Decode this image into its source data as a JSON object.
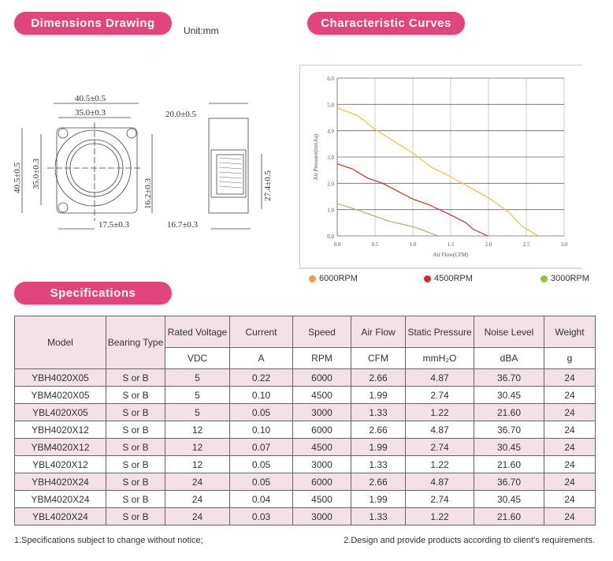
{
  "dimensions": {
    "title": "Dimensions Drawing",
    "unit": "Unit:mm",
    "labels": {
      "front_width_outer": "40.5±0.5",
      "front_width_inner": "35.0±0.3",
      "front_height_outer": "40.5±0.5",
      "front_height_inner": "35.0±0.3",
      "front_right_height": "16.2±0.3",
      "front_bottom": "17.5±0.3",
      "side_width": "20.0±0.5",
      "side_height": "27.4±0.5",
      "side_bottom": "16.7±0.3"
    }
  },
  "curves": {
    "title": "Characteristic Curves"
  },
  "chart_data": {
    "type": "line",
    "title": "Characteristic Curves",
    "xlabel": "Air Flow(CFM)",
    "ylabel": "Air Pressure(mmAq)",
    "xlim": [
      0,
      3
    ],
    "ylim": [
      0,
      6
    ],
    "xticks": [
      "0.0",
      "0.5",
      "1.0",
      "1.5",
      "2.0",
      "2.5",
      "3.0"
    ],
    "yticks": [
      "0.0",
      "1.0",
      "2.0",
      "3.0",
      "4.0",
      "5.0",
      "6.0"
    ],
    "grid": true,
    "legend_position": "bottom",
    "series": [
      {
        "name": "6000RPM",
        "color": "#f0c040",
        "legend_color": "#f39a4c",
        "points": [
          [
            0,
            4.87
          ],
          [
            0.25,
            4.6
          ],
          [
            0.35,
            4.4
          ],
          [
            0.5,
            4.05
          ],
          [
            0.75,
            3.6
          ],
          [
            1.0,
            3.15
          ],
          [
            1.25,
            2.6
          ],
          [
            1.5,
            2.25
          ],
          [
            1.75,
            1.85
          ],
          [
            2.0,
            1.45
          ],
          [
            2.25,
            0.95
          ],
          [
            2.45,
            0.35
          ],
          [
            2.66,
            0
          ]
        ]
      },
      {
        "name": "4500RPM",
        "color": "#d42a2a",
        "legend_color": "#d42a2a",
        "points": [
          [
            0,
            2.74
          ],
          [
            0.2,
            2.55
          ],
          [
            0.4,
            2.2
          ],
          [
            0.6,
            2.0
          ],
          [
            0.8,
            1.7
          ],
          [
            1.0,
            1.4
          ],
          [
            1.2,
            1.2
          ],
          [
            1.5,
            0.8
          ],
          [
            1.7,
            0.5
          ],
          [
            1.8,
            0.25
          ],
          [
            1.99,
            0
          ]
        ]
      },
      {
        "name": "3000RPM",
        "color": "#9cb86a",
        "legend_color": "#8cc43c",
        "points": [
          [
            0,
            1.22
          ],
          [
            0.15,
            1.1
          ],
          [
            0.3,
            0.95
          ],
          [
            0.5,
            0.75
          ],
          [
            0.7,
            0.55
          ],
          [
            1.0,
            0.35
          ],
          [
            1.15,
            0.2
          ],
          [
            1.33,
            0
          ]
        ]
      }
    ]
  },
  "specifications": {
    "title": "Specifications",
    "headers": [
      "Model",
      "Bearing Type",
      "Rated Voltage",
      "Current",
      "Speed",
      "Air Flow",
      "Static Pressure",
      "Noise Level",
      "Weight"
    ],
    "units": [
      "VDC",
      "A",
      "RPM",
      "CFM",
      "mmH₂O",
      "dBA",
      "g"
    ],
    "rows": [
      [
        "YBH4020X05",
        "S or B",
        "5",
        "0.22",
        "6000",
        "2.66",
        "4.87",
        "36.70",
        "24"
      ],
      [
        "YBM4020X05",
        "S or B",
        "5",
        "0.10",
        "4500",
        "1.99",
        "2.74",
        "30.45",
        "24"
      ],
      [
        "YBL4020X05",
        "S or B",
        "5",
        "0.05",
        "3000",
        "1.33",
        "1.22",
        "21.60",
        "24"
      ],
      [
        "YBH4020X12",
        "S or B",
        "12",
        "0.10",
        "6000",
        "2.66",
        "4.87",
        "36.70",
        "24"
      ],
      [
        "YBM4020X12",
        "S or B",
        "12",
        "0.07",
        "4500",
        "1.99",
        "2.74",
        "30.45",
        "24"
      ],
      [
        "YBL4020X12",
        "S or B",
        "12",
        "0.05",
        "3000",
        "1.33",
        "1.22",
        "21.60",
        "24"
      ],
      [
        "YBH4020X24",
        "S or B",
        "24",
        "0.05",
        "6000",
        "2.66",
        "4.87",
        "36.70",
        "24"
      ],
      [
        "YBM4020X24",
        "S or B",
        "24",
        "0.04",
        "4500",
        "1.99",
        "2.74",
        "30.45",
        "24"
      ],
      [
        "YBL4020X24",
        "S or B",
        "24",
        "0.03",
        "3000",
        "1.33",
        "1.22",
        "21.60",
        "24"
      ]
    ]
  },
  "footnotes": [
    "1.Specifications subject to change without notice;",
    "2.Design and provide products according to client's requirements."
  ]
}
